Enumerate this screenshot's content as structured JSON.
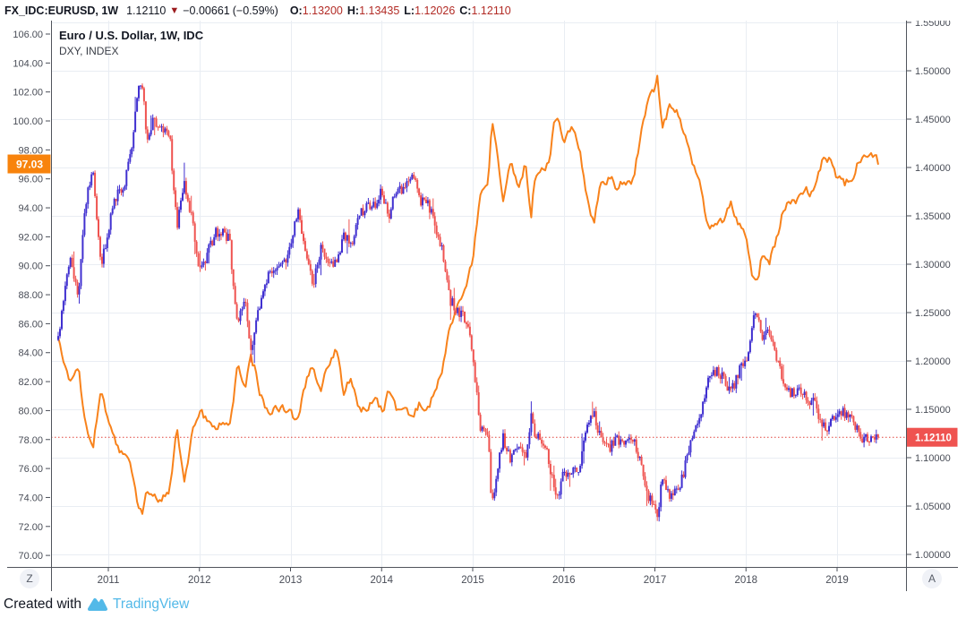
{
  "header": {
    "symbol": "FX_IDC:EURUSD, 1W",
    "last_price": "1.12110",
    "direction_icon": "▼",
    "change_abs": "−0.00661",
    "change_pct": "(−0.59%)",
    "ohlc": [
      {
        "label": "O:",
        "value": "1.13200"
      },
      {
        "label": "H:",
        "value": "1.13435"
      },
      {
        "label": "L:",
        "value": "1.12026"
      },
      {
        "label": "C:",
        "value": "1.12110"
      }
    ]
  },
  "legend": {
    "line1": "Euro / U.S. Dollar, 1W, IDC",
    "line2": "DXY, INDEX"
  },
  "buttons": {
    "z_label": "Z",
    "a_label": "A"
  },
  "footer": {
    "created_with": "Created with",
    "brand": "TradingView"
  },
  "colors": {
    "candle_up": "#4030D0",
    "candle_down": "#EF5350",
    "dxy_line": "#F8821B",
    "dxy_badge_bg": "#F8830C",
    "price_badge_bg": "#EF5350",
    "price_dotted_line": "#E0433D",
    "grid": "#E9EDF3",
    "frame": "#50545C",
    "axis_text": "#494D57",
    "header_value_red": "#B22B25",
    "brand_blue": "#53B9E8"
  },
  "chart_data": {
    "type": "candlestick+line",
    "title": "Euro / U.S. Dollar, 1W, IDC with DXY, INDEX overlay",
    "x_axis": {
      "start": 2010.45,
      "end": 2019.45,
      "year_labels": [
        2011,
        2012,
        2013,
        2014,
        2015,
        2016,
        2017,
        2018,
        2019
      ]
    },
    "right_axis": {
      "label": "EURUSD",
      "min": 0.975,
      "max": 1.553,
      "ticks": [
        1.55,
        1.5,
        1.45,
        1.4,
        1.35,
        1.3,
        1.25,
        1.2,
        1.15,
        1.1,
        1.05,
        1.0
      ]
    },
    "left_axis": {
      "label": "DXY",
      "min": 69.0,
      "max": 106.9,
      "ticks": [
        106,
        104,
        102,
        100,
        98,
        96,
        94,
        92,
        90,
        88,
        86,
        84,
        82,
        80,
        78,
        76,
        74,
        72,
        70
      ]
    },
    "last_price": 1.1211,
    "last_price_label": "1.12110",
    "dxy_last": 97.03,
    "dxy_last_label": "97.03",
    "legend_position": "top-left",
    "grid": true,
    "series": [
      {
        "name": "EURUSD weekly candles",
        "axis": "right",
        "type": "candlestick",
        "anchors": [
          [
            2010.45,
            1.225
          ],
          [
            2010.58,
            1.305
          ],
          [
            2010.67,
            1.268
          ],
          [
            2010.75,
            1.363
          ],
          [
            2010.83,
            1.395
          ],
          [
            2010.92,
            1.298
          ],
          [
            2011.0,
            1.336
          ],
          [
            2011.08,
            1.369
          ],
          [
            2011.17,
            1.381
          ],
          [
            2011.25,
            1.416
          ],
          [
            2011.33,
            1.48
          ],
          [
            2011.37,
            1.488
          ],
          [
            2011.42,
            1.432
          ],
          [
            2011.5,
            1.452
          ],
          [
            2011.58,
            1.44
          ],
          [
            2011.67,
            1.438
          ],
          [
            2011.75,
            1.339
          ],
          [
            2011.83,
            1.386
          ],
          [
            2011.92,
            1.344
          ],
          [
            2012.0,
            1.296
          ],
          [
            2012.08,
            1.308
          ],
          [
            2012.17,
            1.333
          ],
          [
            2012.25,
            1.334
          ],
          [
            2012.33,
            1.324
          ],
          [
            2012.42,
            1.236
          ],
          [
            2012.5,
            1.266
          ],
          [
            2012.56,
            1.21
          ],
          [
            2012.62,
            1.24
          ],
          [
            2012.67,
            1.257
          ],
          [
            2012.75,
            1.286
          ],
          [
            2012.83,
            1.296
          ],
          [
            2012.92,
            1.298
          ],
          [
            2013.0,
            1.319
          ],
          [
            2013.08,
            1.358
          ],
          [
            2013.17,
            1.305
          ],
          [
            2013.25,
            1.282
          ],
          [
            2013.33,
            1.317
          ],
          [
            2013.42,
            1.3
          ],
          [
            2013.5,
            1.301
          ],
          [
            2013.58,
            1.33
          ],
          [
            2013.67,
            1.322
          ],
          [
            2013.75,
            1.353
          ],
          [
            2013.83,
            1.358
          ],
          [
            2013.92,
            1.359
          ],
          [
            2014.0,
            1.375
          ],
          [
            2014.08,
            1.349
          ],
          [
            2014.17,
            1.38
          ],
          [
            2014.25,
            1.377
          ],
          [
            2014.33,
            1.387
          ],
          [
            2014.36,
            1.393
          ],
          [
            2014.42,
            1.363
          ],
          [
            2014.5,
            1.369
          ],
          [
            2014.58,
            1.339
          ],
          [
            2014.67,
            1.313
          ],
          [
            2014.75,
            1.263
          ],
          [
            2014.83,
            1.253
          ],
          [
            2014.92,
            1.245
          ],
          [
            2015.0,
            1.21
          ],
          [
            2015.08,
            1.129
          ],
          [
            2015.17,
            1.119
          ],
          [
            2015.21,
            1.05
          ],
          [
            2015.25,
            1.073
          ],
          [
            2015.33,
            1.122
          ],
          [
            2015.42,
            1.099
          ],
          [
            2015.5,
            1.115
          ],
          [
            2015.58,
            1.098
          ],
          [
            2015.65,
            1.148
          ],
          [
            2015.67,
            1.121
          ],
          [
            2015.75,
            1.118
          ],
          [
            2015.83,
            1.1
          ],
          [
            2015.9,
            1.062
          ],
          [
            2015.92,
            1.056
          ],
          [
            2016.0,
            1.086
          ],
          [
            2016.08,
            1.083
          ],
          [
            2016.17,
            1.087
          ],
          [
            2016.25,
            1.138
          ],
          [
            2016.33,
            1.145
          ],
          [
            2016.42,
            1.113
          ],
          [
            2016.5,
            1.111
          ],
          [
            2016.58,
            1.117
          ],
          [
            2016.67,
            1.116
          ],
          [
            2016.75,
            1.124
          ],
          [
            2016.83,
            1.098
          ],
          [
            2016.92,
            1.059
          ],
          [
            2017.0,
            1.052
          ],
          [
            2017.03,
            1.04
          ],
          [
            2017.08,
            1.08
          ],
          [
            2017.17,
            1.058
          ],
          [
            2017.25,
            1.065
          ],
          [
            2017.33,
            1.09
          ],
          [
            2017.42,
            1.124
          ],
          [
            2017.5,
            1.143
          ],
          [
            2017.58,
            1.184
          ],
          [
            2017.67,
            1.191
          ],
          [
            2017.75,
            1.181
          ],
          [
            2017.83,
            1.165
          ],
          [
            2017.92,
            1.19
          ],
          [
            2018.0,
            1.2
          ],
          [
            2018.08,
            1.241
          ],
          [
            2018.13,
            1.248
          ],
          [
            2018.17,
            1.219
          ],
          [
            2018.25,
            1.232
          ],
          [
            2018.33,
            1.208
          ],
          [
            2018.42,
            1.169
          ],
          [
            2018.5,
            1.168
          ],
          [
            2018.58,
            1.169
          ],
          [
            2018.67,
            1.16
          ],
          [
            2018.75,
            1.16
          ],
          [
            2018.83,
            1.131
          ],
          [
            2018.92,
            1.132
          ],
          [
            2019.0,
            1.147
          ],
          [
            2019.08,
            1.145
          ],
          [
            2019.17,
            1.137
          ],
          [
            2019.25,
            1.122
          ],
          [
            2019.33,
            1.121
          ],
          [
            2019.42,
            1.117
          ],
          [
            2019.45,
            1.1211
          ]
        ]
      },
      {
        "name": "DXY index line",
        "axis": "left",
        "type": "line",
        "anchors": [
          [
            2010.45,
            84.8
          ],
          [
            2010.58,
            81.6
          ],
          [
            2010.67,
            83.2
          ],
          [
            2010.75,
            78.8
          ],
          [
            2010.83,
            77.2
          ],
          [
            2010.92,
            81.3
          ],
          [
            2011.0,
            79.0
          ],
          [
            2011.08,
            77.7
          ],
          [
            2011.17,
            76.9
          ],
          [
            2011.25,
            75.9
          ],
          [
            2011.33,
            73.0
          ],
          [
            2011.37,
            72.9
          ],
          [
            2011.42,
            74.9
          ],
          [
            2011.5,
            74.3
          ],
          [
            2011.58,
            73.9
          ],
          [
            2011.67,
            74.1
          ],
          [
            2011.75,
            78.6
          ],
          [
            2011.83,
            75.1
          ],
          [
            2011.92,
            78.4
          ],
          [
            2012.0,
            80.2
          ],
          [
            2012.08,
            79.3
          ],
          [
            2012.17,
            78.7
          ],
          [
            2012.25,
            79.0
          ],
          [
            2012.33,
            78.8
          ],
          [
            2012.42,
            83.0
          ],
          [
            2012.5,
            81.6
          ],
          [
            2012.56,
            83.6
          ],
          [
            2012.62,
            82.7
          ],
          [
            2012.67,
            81.2
          ],
          [
            2012.75,
            79.9
          ],
          [
            2012.83,
            80.0
          ],
          [
            2012.92,
            80.2
          ],
          [
            2013.0,
            79.8
          ],
          [
            2013.08,
            79.2
          ],
          [
            2013.17,
            81.9
          ],
          [
            2013.25,
            83.0
          ],
          [
            2013.33,
            81.7
          ],
          [
            2013.42,
            83.4
          ],
          [
            2013.52,
            84.3
          ],
          [
            2013.58,
            81.5
          ],
          [
            2013.67,
            82.1
          ],
          [
            2013.75,
            80.2
          ],
          [
            2013.83,
            80.2
          ],
          [
            2013.92,
            80.7
          ],
          [
            2014.0,
            80.0
          ],
          [
            2014.08,
            81.3
          ],
          [
            2014.17,
            79.7
          ],
          [
            2014.25,
            80.2
          ],
          [
            2014.33,
            79.5
          ],
          [
            2014.42,
            80.4
          ],
          [
            2014.5,
            79.8
          ],
          [
            2014.58,
            81.4
          ],
          [
            2014.67,
            82.7
          ],
          [
            2014.75,
            85.9
          ],
          [
            2014.83,
            87.0
          ],
          [
            2014.92,
            88.3
          ],
          [
            2015.0,
            90.3
          ],
          [
            2015.08,
            94.8
          ],
          [
            2015.17,
            95.3
          ],
          [
            2015.21,
            100.2
          ],
          [
            2015.25,
            98.4
          ],
          [
            2015.33,
            94.6
          ],
          [
            2015.42,
            96.9
          ],
          [
            2015.5,
            95.5
          ],
          [
            2015.58,
            97.2
          ],
          [
            2015.65,
            93.0
          ],
          [
            2015.67,
            96.0
          ],
          [
            2015.75,
            96.3
          ],
          [
            2015.83,
            97.0
          ],
          [
            2015.9,
            100.0
          ],
          [
            2015.92,
            100.2
          ],
          [
            2016.0,
            98.7
          ],
          [
            2016.08,
            99.6
          ],
          [
            2016.17,
            98.2
          ],
          [
            2016.25,
            94.6
          ],
          [
            2016.33,
            93.1
          ],
          [
            2016.42,
            95.9
          ],
          [
            2016.5,
            96.1
          ],
          [
            2016.58,
            95.5
          ],
          [
            2016.67,
            96.0
          ],
          [
            2016.75,
            95.5
          ],
          [
            2016.83,
            98.4
          ],
          [
            2016.92,
            101.5
          ],
          [
            2017.0,
            102.2
          ],
          [
            2017.03,
            103.2
          ],
          [
            2017.08,
            99.5
          ],
          [
            2017.17,
            101.1
          ],
          [
            2017.25,
            100.4
          ],
          [
            2017.33,
            99.0
          ],
          [
            2017.42,
            96.9
          ],
          [
            2017.5,
            95.6
          ],
          [
            2017.58,
            92.9
          ],
          [
            2017.67,
            92.7
          ],
          [
            2017.75,
            93.1
          ],
          [
            2017.83,
            94.6
          ],
          [
            2017.92,
            93.1
          ],
          [
            2018.0,
            92.1
          ],
          [
            2018.08,
            89.1
          ],
          [
            2018.13,
            88.8
          ],
          [
            2018.17,
            90.6
          ],
          [
            2018.25,
            90.0
          ],
          [
            2018.33,
            91.8
          ],
          [
            2018.42,
            94.0
          ],
          [
            2018.5,
            94.5
          ],
          [
            2018.58,
            94.6
          ],
          [
            2018.67,
            95.1
          ],
          [
            2018.75,
            95.1
          ],
          [
            2018.83,
            97.1
          ],
          [
            2018.92,
            97.3
          ],
          [
            2019.0,
            96.2
          ],
          [
            2019.08,
            95.6
          ],
          [
            2019.17,
            96.2
          ],
          [
            2019.25,
            97.3
          ],
          [
            2019.33,
            97.5
          ],
          [
            2019.42,
            97.8
          ],
          [
            2019.45,
            97.03
          ]
        ]
      }
    ]
  }
}
